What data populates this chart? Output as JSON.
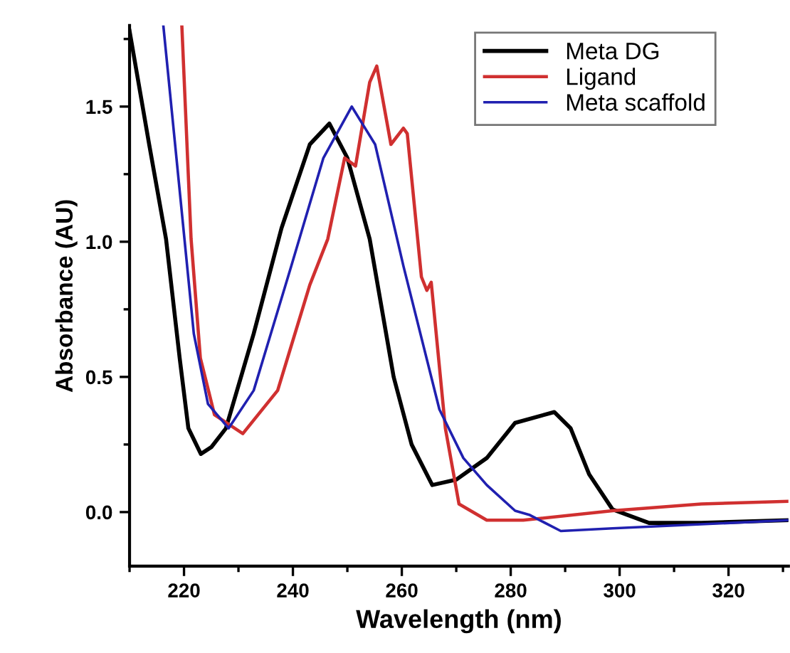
{
  "chart_data": {
    "type": "line",
    "xlabel": "Wavelength (nm)",
    "ylabel": "Absorbance (AU)",
    "xlim": [
      210,
      331
    ],
    "ylim": [
      -0.2,
      1.8
    ],
    "xticks": [
      220,
      240,
      260,
      280,
      300,
      320
    ],
    "yticks": [
      {
        "value": 0,
        "label": "0.0"
      },
      {
        "value": 0.5,
        "label": "0.5"
      },
      {
        "value": 1,
        "label": "1.0"
      },
      {
        "value": 1.5,
        "label": "1.5"
      }
    ],
    "legend": "top right",
    "grid": false,
    "marker": "none",
    "line_style": "solid",
    "series": [
      {
        "name": "Meta DG",
        "color": "#000000",
        "x": [
          210,
          213.6,
          216.7,
          219.2,
          220.8,
          223.1,
          225,
          227.7,
          232.8,
          237.9,
          243.1,
          246.7,
          250,
          254.1,
          258.5,
          261.8,
          265.6,
          270,
          275.6,
          280.8,
          288,
          291,
          294.4,
          298.7,
          305.4,
          315,
          331
        ],
        "values": [
          1.78,
          1.36,
          1.01,
          0.57,
          0.31,
          0.215,
          0.24,
          0.31,
          0.66,
          1.05,
          1.36,
          1.437,
          1.31,
          1.01,
          0.5,
          0.25,
          0.1,
          0.12,
          0.2,
          0.33,
          0.37,
          0.31,
          0.14,
          0.01,
          -0.04,
          -0.04,
          -0.03
        ]
      },
      {
        "name": "Ligand",
        "color": "#d03030",
        "x": [
          219.6,
          221.3,
          223,
          225.6,
          230.8,
          237.2,
          243.1,
          246.4,
          249.5,
          251.5,
          254.1,
          255.4,
          258,
          260.3,
          261,
          263.6,
          264.6,
          265.4,
          268,
          270.5,
          275.6,
          282.3,
          298.7,
          315,
          331
        ],
        "values": [
          1.8,
          1.01,
          0.57,
          0.36,
          0.29,
          0.45,
          0.84,
          1.01,
          1.31,
          1.28,
          1.59,
          1.65,
          1.36,
          1.42,
          1.4,
          0.87,
          0.82,
          0.85,
          0.31,
          0.03,
          -0.03,
          -0.03,
          0.005,
          0.03,
          0.04
        ]
      },
      {
        "name": "Meta scaffold",
        "color": "#2020b0",
        "x": [
          216.2,
          219.2,
          221.8,
          224.4,
          228.2,
          232.8,
          239.7,
          245.6,
          250.8,
          255.1,
          260.3,
          266.9,
          271.3,
          275.6,
          280.8,
          283.4,
          289.2,
          298.7,
          315,
          331
        ],
        "values": [
          1.8,
          1.19,
          0.66,
          0.4,
          0.31,
          0.45,
          0.91,
          1.31,
          1.5,
          1.36,
          0.91,
          0.38,
          0.2,
          0.1,
          0.005,
          -0.01,
          -0.07,
          -0.06,
          -0.045,
          -0.03
        ]
      }
    ]
  }
}
